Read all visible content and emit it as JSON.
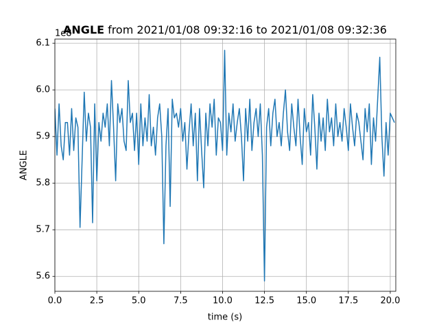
{
  "chart_data": {
    "type": "line",
    "title": {
      "name": "ANGLE",
      "range": "from 2021/01/08 09:32:16 to 2021/01/08 09:32:36"
    },
    "offset_label": "1e8",
    "xlabel": "time (s)",
    "ylabel": "ANGLE",
    "color": "#1f77b4",
    "grid": true,
    "xlim": [
      0,
      20.33
    ],
    "ylim": [
      5.568,
      6.109
    ],
    "xticks": [
      {
        "value": 0,
        "label": "0.0"
      },
      2.5,
      {
        "value": 5,
        "label": "5.0"
      },
      7.5,
      {
        "value": 10,
        "label": "10.0"
      },
      12.5,
      {
        "value": 15,
        "label": "15.0"
      },
      17.5,
      {
        "value": 20,
        "label": "20.0"
      }
    ],
    "yticks": [
      5.6,
      5.7,
      5.8,
      5.9,
      {
        "value": 6,
        "label": "6.0"
      },
      6.1
    ],
    "x": [
      0,
      0.125,
      0.25,
      0.375,
      0.5,
      0.625,
      0.75,
      0.875,
      1,
      1.125,
      1.25,
      1.375,
      1.5,
      1.625,
      1.75,
      1.875,
      2,
      2.125,
      2.25,
      2.375,
      2.5,
      2.625,
      2.75,
      2.875,
      3,
      3.125,
      3.25,
      3.375,
      3.5,
      3.625,
      3.75,
      3.875,
      4,
      4.125,
      4.25,
      4.375,
      4.5,
      4.625,
      4.75,
      4.875,
      5,
      5.125,
      5.25,
      5.375,
      5.5,
      5.625,
      5.75,
      5.875,
      6,
      6.125,
      6.25,
      6.375,
      6.5,
      6.625,
      6.75,
      6.875,
      7,
      7.125,
      7.25,
      7.375,
      7.5,
      7.625,
      7.75,
      7.875,
      8,
      8.125,
      8.25,
      8.375,
      8.5,
      8.625,
      8.75,
      8.875,
      9,
      9.125,
      9.25,
      9.375,
      9.5,
      9.625,
      9.75,
      9.875,
      10,
      10.125,
      10.25,
      10.375,
      10.5,
      10.625,
      10.75,
      10.875,
      11,
      11.125,
      11.25,
      11.375,
      11.5,
      11.625,
      11.75,
      11.875,
      12,
      12.125,
      12.25,
      12.375,
      12.5,
      12.625,
      12.75,
      12.875,
      13,
      13.125,
      13.25,
      13.375,
      13.5,
      13.625,
      13.75,
      13.875,
      14,
      14.125,
      14.25,
      14.375,
      14.5,
      14.625,
      14.75,
      14.875,
      15,
      15.125,
      15.25,
      15.375,
      15.5,
      15.625,
      15.75,
      15.875,
      16,
      16.125,
      16.25,
      16.375,
      16.5,
      16.625,
      16.75,
      16.875,
      17,
      17.125,
      17.25,
      17.375,
      17.5,
      17.625,
      17.75,
      17.875,
      18,
      18.125,
      18.25,
      18.375,
      18.5,
      18.625,
      18.75,
      18.875,
      19,
      19.125,
      19.25,
      19.375,
      19.5,
      19.625,
      19.75,
      19.875,
      20,
      20.125,
      20.25
    ],
    "values": [
      5.96,
      5.86,
      5.97,
      5.88,
      5.85,
      5.93,
      5.93,
      5.86,
      5.96,
      5.87,
      5.94,
      5.92,
      5.705,
      5.85,
      5.995,
      5.89,
      5.95,
      5.92,
      5.715,
      5.97,
      5.805,
      5.93,
      5.89,
      5.95,
      5.92,
      5.97,
      5.88,
      6.02,
      5.92,
      5.805,
      5.97,
      5.93,
      5.96,
      5.89,
      5.87,
      6.02,
      5.93,
      5.95,
      5.87,
      5.95,
      5.84,
      5.97,
      5.88,
      5.94,
      5.89,
      5.99,
      5.88,
      5.92,
      5.86,
      5.94,
      5.97,
      5.9,
      5.67,
      5.88,
      5.96,
      5.75,
      5.98,
      5.94,
      5.95,
      5.92,
      5.96,
      5.89,
      5.93,
      5.83,
      5.91,
      5.97,
      5.88,
      5.95,
      5.805,
      5.96,
      5.87,
      5.79,
      5.95,
      5.88,
      5.97,
      5.92,
      5.98,
      5.86,
      5.94,
      5.93,
      5.87,
      6.085,
      5.86,
      5.95,
      5.91,
      5.97,
      5.89,
      5.93,
      5.96,
      5.9,
      5.805,
      5.96,
      5.89,
      5.98,
      5.87,
      5.93,
      5.96,
      5.9,
      5.97,
      5.86,
      5.59,
      5.92,
      5.96,
      5.88,
      5.95,
      5.98,
      5.9,
      5.93,
      5.88,
      5.95,
      6.0,
      5.91,
      5.87,
      5.97,
      5.92,
      5.88,
      5.98,
      5.9,
      5.84,
      5.96,
      5.91,
      5.93,
      5.86,
      5.99,
      5.92,
      5.83,
      5.95,
      5.89,
      5.94,
      5.87,
      5.98,
      5.91,
      5.94,
      5.88,
      5.97,
      5.9,
      5.93,
      5.89,
      5.96,
      5.92,
      5.87,
      5.97,
      5.92,
      5.88,
      5.95,
      5.93,
      5.89,
      5.85,
      5.96,
      5.91,
      5.97,
      5.84,
      5.94,
      5.89,
      5.98,
      6.07,
      5.9,
      5.815,
      5.93,
      5.86,
      5.95,
      5.94,
      5.93
    ]
  }
}
